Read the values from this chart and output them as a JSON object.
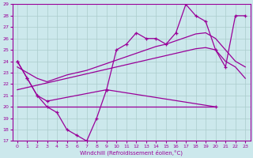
{
  "xlabel": "Windchill (Refroidissement éolien,°C)",
  "ylim": [
    17,
    29
  ],
  "yticks": [
    17,
    18,
    19,
    20,
    21,
    22,
    23,
    24,
    25,
    26,
    27,
    28,
    29
  ],
  "bg_color": "#cce8ec",
  "grid_color": "#aacccc",
  "line_color": "#990099",
  "flat_line": {
    "x": [
      0,
      20
    ],
    "y": [
      20.0,
      20.0
    ]
  },
  "zigzag_line": {
    "x": [
      0,
      1,
      2,
      3,
      4,
      5,
      6,
      7,
      8,
      9,
      20
    ],
    "y": [
      24.0,
      22.5,
      21.0,
      20.0,
      19.5,
      18.0,
      17.5,
      17.0,
      19.0,
      21.5,
      20.0
    ]
  },
  "smooth_low": {
    "x": [
      0,
      1,
      2,
      3,
      4,
      5,
      6,
      7,
      8,
      9,
      10,
      11,
      12,
      13,
      14,
      15,
      16,
      17,
      18,
      19,
      20,
      21,
      22,
      23
    ],
    "y": [
      21.5,
      21.7,
      21.9,
      22.1,
      22.3,
      22.5,
      22.7,
      22.9,
      23.1,
      23.3,
      23.5,
      23.7,
      23.9,
      24.1,
      24.3,
      24.5,
      24.7,
      24.9,
      25.1,
      25.2,
      25.0,
      24.0,
      23.5,
      22.5
    ]
  },
  "smooth_high": {
    "x": [
      0,
      1,
      2,
      3,
      4,
      5,
      6,
      7,
      8,
      9,
      10,
      11,
      12,
      13,
      14,
      15,
      16,
      17,
      18,
      19,
      20,
      21,
      22,
      23
    ],
    "y": [
      23.5,
      23.0,
      22.5,
      22.2,
      22.5,
      22.8,
      23.0,
      23.2,
      23.5,
      23.8,
      24.1,
      24.4,
      24.7,
      25.0,
      25.3,
      25.5,
      25.8,
      26.1,
      26.4,
      26.5,
      26.0,
      25.0,
      24.0,
      23.5
    ]
  },
  "top_jagged": {
    "x": [
      0,
      1,
      2,
      3,
      9,
      10,
      11,
      12,
      13,
      14,
      15,
      16,
      17,
      18,
      19,
      20,
      21,
      22,
      23
    ],
    "y": [
      24.0,
      22.5,
      21.0,
      20.5,
      21.5,
      25.0,
      25.5,
      26.5,
      26.0,
      26.0,
      25.5,
      26.5,
      29.0,
      28.0,
      27.5,
      25.0,
      23.5,
      28.0,
      28.0
    ]
  }
}
